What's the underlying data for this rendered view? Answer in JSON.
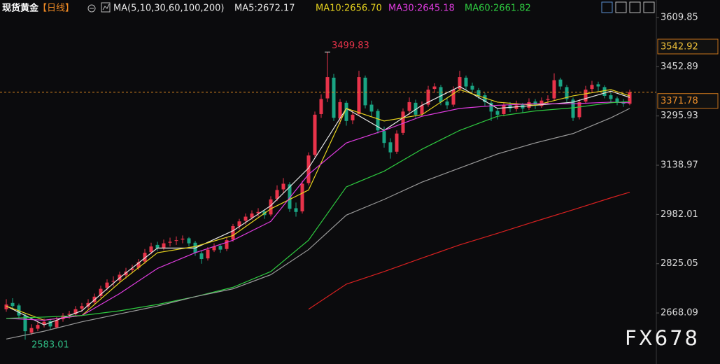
{
  "chart_data": {
    "type": "candlestick",
    "title": "现货黄金",
    "period": "【日线】",
    "ma_params": "MA(5,10,30,60,100,200)",
    "ma_readouts": [
      {
        "text": "MA5:2672.17",
        "color": "#e6e6e6"
      },
      {
        "text": "MA10:2656.70",
        "color": "#e6d21e"
      },
      {
        "text": "MA30:2645.18",
        "color": "#e03ce0"
      },
      {
        "text": "MA60:2661.82",
        "color": "#2ecc40"
      }
    ],
    "watermark": "FX678",
    "ylim": [
      2505.4,
      3665.6
    ],
    "yticks": [
      3609.85,
      3452.89,
      3295.93,
      3138.97,
      2982.01,
      2825.05,
      2668.09
    ],
    "cursor_price": 3542.92,
    "up_color": "#e8334a",
    "down_color": "#1aa584",
    "ohlc": [
      [
        2680,
        2712,
        2672,
        2695
      ],
      [
        2700,
        2715,
        2678,
        2690
      ],
      [
        2692,
        2698,
        2650,
        2660
      ],
      [
        2660,
        2668,
        2583.01,
        2610
      ],
      [
        2605,
        2632,
        2598,
        2620
      ],
      [
        2618,
        2640,
        2610,
        2630
      ],
      [
        2632,
        2650,
        2622,
        2640
      ],
      [
        2642,
        2648,
        2615,
        2625
      ],
      [
        2622,
        2655,
        2618,
        2645
      ],
      [
        2648,
        2668,
        2640,
        2660
      ],
      [
        2662,
        2675,
        2650,
        2665
      ],
      [
        2664,
        2690,
        2658,
        2680
      ],
      [
        2682,
        2700,
        2672,
        2690
      ],
      [
        2688,
        2712,
        2680,
        2700
      ],
      [
        2702,
        2730,
        2695,
        2720
      ],
      [
        2722,
        2755,
        2715,
        2745
      ],
      [
        2748,
        2775,
        2740,
        2765
      ],
      [
        2768,
        2785,
        2752,
        2770
      ],
      [
        2772,
        2800,
        2765,
        2790
      ],
      [
        2788,
        2812,
        2778,
        2800
      ],
      [
        2805,
        2822,
        2795,
        2810
      ],
      [
        2812,
        2840,
        2805,
        2830
      ],
      [
        2832,
        2872,
        2825,
        2860
      ],
      [
        2862,
        2892,
        2855,
        2880
      ],
      [
        2885,
        2895,
        2865,
        2875
      ],
      [
        2874,
        2902,
        2868,
        2890
      ],
      [
        2892,
        2908,
        2880,
        2895
      ],
      [
        2898,
        2912,
        2885,
        2900
      ],
      [
        2902,
        2915,
        2890,
        2905
      ],
      [
        2906,
        2910,
        2880,
        2890
      ],
      [
        2892,
        2898,
        2850,
        2860
      ],
      [
        2858,
        2868,
        2825,
        2840
      ],
      [
        2842,
        2878,
        2835,
        2870
      ],
      [
        2868,
        2890,
        2862,
        2880
      ],
      [
        2882,
        2888,
        2860,
        2870
      ],
      [
        2872,
        2908,
        2865,
        2900
      ],
      [
        2902,
        2952,
        2895,
        2945
      ],
      [
        2944,
        2968,
        2935,
        2960
      ],
      [
        2962,
        2985,
        2950,
        2975
      ],
      [
        2972,
        2995,
        2965,
        2985
      ],
      [
        2986,
        3002,
        2975,
        2990
      ],
      [
        2992,
        2998,
        2968,
        2980
      ],
      [
        2982,
        3040,
        2976,
        3030
      ],
      [
        3032,
        3075,
        3025,
        3060
      ],
      [
        3062,
        3098,
        3050,
        3080
      ],
      [
        3078,
        3085,
        2990,
        3000
      ],
      [
        3002,
        3020,
        2975,
        2990
      ],
      [
        2992,
        3090,
        2985,
        3080
      ],
      [
        3082,
        3180,
        3075,
        3170
      ],
      [
        3172,
        3310,
        3165,
        3300
      ],
      [
        3302,
        3365,
        3290,
        3350
      ],
      [
        3352,
        3499.83,
        3340,
        3420
      ],
      [
        3418,
        3430,
        3280,
        3290
      ],
      [
        3288,
        3350,
        3270,
        3340
      ],
      [
        3338,
        3345,
        3265,
        3280
      ],
      [
        3282,
        3315,
        3270,
        3300
      ],
      [
        3302,
        3440,
        3295,
        3420
      ],
      [
        3418,
        3425,
        3320,
        3330
      ],
      [
        3332,
        3345,
        3295,
        3310
      ],
      [
        3312,
        3318,
        3240,
        3250
      ],
      [
        3248,
        3262,
        3195,
        3210
      ],
      [
        3212,
        3225,
        3160,
        3180
      ],
      [
        3182,
        3250,
        3175,
        3240
      ],
      [
        3242,
        3320,
        3235,
        3310
      ],
      [
        3312,
        3355,
        3300,
        3340
      ],
      [
        3338,
        3348,
        3290,
        3300
      ],
      [
        3302,
        3342,
        3295,
        3330
      ],
      [
        3332,
        3392,
        3325,
        3380
      ],
      [
        3382,
        3400,
        3370,
        3390
      ],
      [
        3388,
        3395,
        3330,
        3340
      ],
      [
        3342,
        3355,
        3318,
        3330
      ],
      [
        3332,
        3390,
        3325,
        3380
      ],
      [
        3382,
        3440,
        3375,
        3420
      ],
      [
        3418,
        3425,
        3380,
        3390
      ],
      [
        3392,
        3402,
        3370,
        3380
      ],
      [
        3378,
        3385,
        3350,
        3360
      ],
      [
        3362,
        3370,
        3328,
        3340
      ],
      [
        3338,
        3345,
        3280,
        3310
      ],
      [
        3312,
        3320,
        3285,
        3300
      ],
      [
        3302,
        3340,
        3295,
        3330
      ],
      [
        3332,
        3340,
        3308,
        3320
      ],
      [
        3318,
        3345,
        3310,
        3330
      ],
      [
        3332,
        3338,
        3305,
        3320
      ],
      [
        3322,
        3352,
        3315,
        3340
      ],
      [
        3342,
        3350,
        3318,
        3330
      ],
      [
        3328,
        3355,
        3322,
        3345
      ],
      [
        3347,
        3362,
        3335,
        3350
      ],
      [
        3352,
        3432,
        3345,
        3410
      ],
      [
        3412,
        3418,
        3380,
        3390
      ],
      [
        3388,
        3395,
        3340,
        3350
      ],
      [
        3348,
        3355,
        3280,
        3290
      ],
      [
        3292,
        3350,
        3285,
        3340
      ],
      [
        3342,
        3392,
        3335,
        3380
      ],
      [
        3382,
        3408,
        3372,
        3395
      ],
      [
        3397,
        3405,
        3375,
        3390
      ],
      [
        3388,
        3394,
        3352,
        3360
      ],
      [
        3362,
        3370,
        3340,
        3350
      ],
      [
        3352,
        3358,
        3330,
        3340
      ],
      [
        3342,
        3350,
        3325,
        3335
      ],
      [
        3335,
        3380,
        3330,
        3371.78
      ]
    ],
    "ma_x": [
      0,
      6,
      12,
      18,
      24,
      30,
      36,
      42,
      48,
      54,
      60,
      66,
      72,
      78,
      84,
      90,
      96,
      99
    ],
    "ma_series": [
      {
        "color": "#e6e6e6",
        "values": [
          2690,
          2630,
          2675,
          2780,
          2875,
          2875,
          2930,
          3010,
          3130,
          3320,
          3250,
          3330,
          3390,
          3320,
          3330,
          3340,
          3375,
          3355
        ]
      },
      {
        "color": "#e6d21e",
        "values": [
          2690,
          2645,
          2660,
          2765,
          2860,
          2880,
          2915,
          3000,
          3060,
          3320,
          3280,
          3300,
          3380,
          3340,
          3330,
          3360,
          3380,
          3360
        ]
      },
      {
        "color": "#e03ce0",
        "values": [
          2651,
          2645,
          2660,
          2730,
          2810,
          2860,
          2900,
          2960,
          3110,
          3210,
          3250,
          3295,
          3320,
          3330,
          3335,
          3335,
          3340,
          3338
        ]
      },
      {
        "color": "#2ecc40",
        "values": [
          2651,
          2655,
          2660,
          2675,
          2695,
          2720,
          2750,
          2800,
          2900,
          3070,
          3120,
          3190,
          3250,
          3295,
          3312,
          3322,
          3338,
          3342
        ]
      },
      {
        "color": "#9a9a9a",
        "values": [
          2585,
          2610,
          2640,
          2665,
          2690,
          2720,
          2745,
          2790,
          2870,
          2980,
          3030,
          3085,
          3130,
          3175,
          3210,
          3240,
          3290,
          3320
        ]
      },
      {
        "color": "#d82020",
        "values": [
          null,
          null,
          null,
          null,
          null,
          null,
          null,
          null,
          2680,
          2760,
          2800,
          2843,
          2885,
          2922,
          2960,
          2997,
          3035,
          3053
        ]
      }
    ]
  }
}
